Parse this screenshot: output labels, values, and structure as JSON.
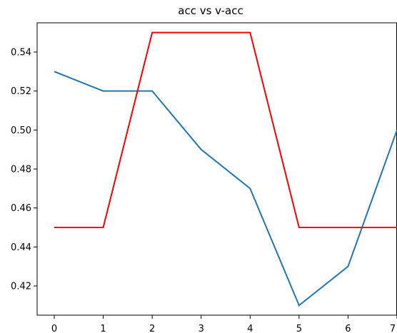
{
  "chart_data": {
    "type": "line",
    "title": "acc vs v-acc",
    "xlabel": "",
    "ylabel": "",
    "x": [
      0,
      1,
      2,
      3,
      4,
      5,
      6,
      7
    ],
    "xticks": [
      "0",
      "1",
      "2",
      "3",
      "4",
      "5",
      "6",
      "7"
    ],
    "yticks": [
      "0.42",
      "0.44",
      "0.46",
      "0.48",
      "0.50",
      "0.52",
      "0.54"
    ],
    "ytick_values": [
      0.42,
      0.44,
      0.46,
      0.48,
      0.5,
      0.52,
      0.54
    ],
    "xlim": [
      -0.35,
      7.0
    ],
    "ylim": [
      0.405,
      0.555
    ],
    "grid": false,
    "series": [
      {
        "color": "#1f77b4",
        "values": [
          0.53,
          0.52,
          0.52,
          0.49,
          0.47,
          0.41,
          0.43,
          0.5
        ]
      },
      {
        "color": "#ff0000",
        "values": [
          0.45,
          0.45,
          0.55,
          0.55,
          0.55,
          0.45,
          0.45,
          0.45
        ]
      }
    ]
  }
}
